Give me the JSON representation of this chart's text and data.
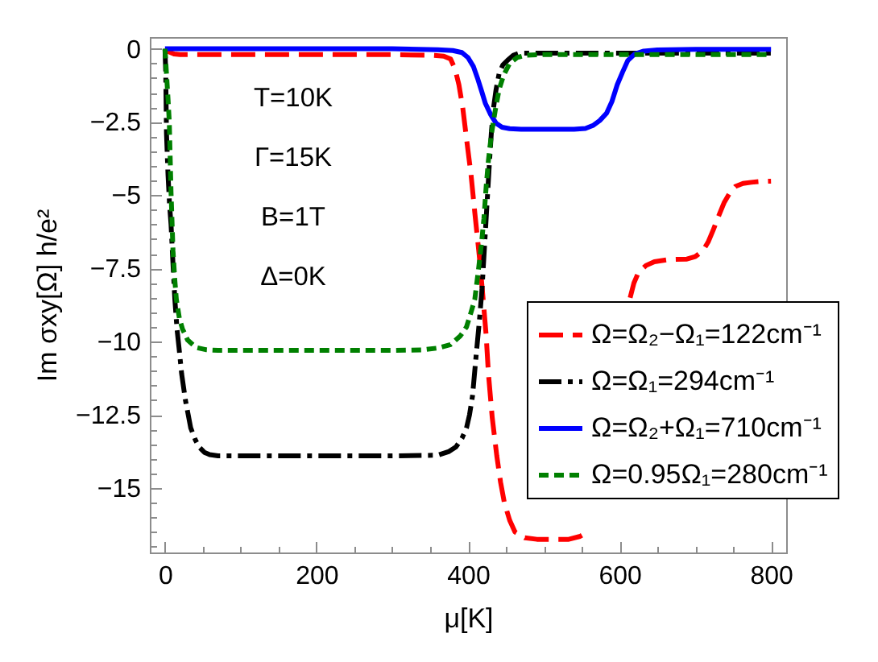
{
  "chart_data": {
    "type": "line",
    "xlabel": "μ[K]",
    "ylabel": "Im σxy[Ω] h/e²",
    "annotations": [
      "T=10K",
      "Γ=15K",
      "B=1T",
      "Δ=0K"
    ],
    "xlim": [
      -20,
      820
    ],
    "ylim": [
      -17.2,
      0.4
    ],
    "xticks": [
      0,
      {
        "value": 50,
        "label": null
      },
      {
        "value": 100,
        "label": null
      },
      {
        "value": 150,
        "label": null
      },
      200,
      {
        "value": 250,
        "label": null
      },
      {
        "value": 300,
        "label": null
      },
      {
        "value": 350,
        "label": null
      },
      400,
      {
        "value": 450,
        "label": null
      },
      {
        "value": 500,
        "label": null
      },
      {
        "value": 550,
        "label": null
      },
      600,
      {
        "value": 650,
        "label": null
      },
      {
        "value": 700,
        "label": null
      },
      {
        "value": 750,
        "label": null
      },
      800
    ],
    "yticks": [
      0,
      {
        "value": -0.5,
        "label": null
      },
      {
        "value": -1,
        "label": null
      },
      {
        "value": -1.5,
        "label": null
      },
      {
        "value": -2,
        "label": null
      },
      -2.5,
      {
        "value": -3,
        "label": null
      },
      {
        "value": -3.5,
        "label": null
      },
      {
        "value": -4,
        "label": null
      },
      {
        "value": -4.5,
        "label": null
      },
      -5,
      {
        "value": -5.5,
        "label": null
      },
      {
        "value": -6,
        "label": null
      },
      {
        "value": -6.5,
        "label": null
      },
      {
        "value": -7,
        "label": null
      },
      -7.5,
      {
        "value": -8,
        "label": null
      },
      {
        "value": -8.5,
        "label": null
      },
      {
        "value": -9,
        "label": null
      },
      {
        "value": -9.5,
        "label": null
      },
      -10,
      {
        "value": -10.5,
        "label": null
      },
      {
        "value": -11,
        "label": null
      },
      {
        "value": -11.5,
        "label": null
      },
      {
        "value": -12,
        "label": null
      },
      -12.5,
      {
        "value": -13,
        "label": null
      },
      {
        "value": -13.5,
        "label": null
      },
      {
        "value": -14,
        "label": null
      },
      {
        "value": -14.5,
        "label": null
      },
      -15,
      {
        "value": -15.5,
        "label": null
      },
      {
        "value": -16,
        "label": null
      },
      {
        "value": -16.5,
        "label": null
      },
      {
        "value": -17,
        "label": null
      }
    ],
    "legend": "bottom right",
    "series": [
      {
        "name": "Ω=Ω₂−Ω₁=122cm⁻¹",
        "color": "#ff0000",
        "line_style": "dashed",
        "x": [
          0,
          5,
          12,
          20,
          100,
          200,
          300,
          350,
          368,
          377,
          383,
          388,
          393,
          398,
          404,
          409,
          415,
          420,
          424,
          427,
          432,
          438,
          443,
          448,
          455,
          462,
          475,
          491,
          510,
          533,
          548,
          558,
          585,
          614,
          619,
          625,
          635,
          646,
          665,
          689,
          700,
          710,
          717,
          724,
          731,
          738,
          745,
          753,
          763,
          774,
          787,
          800
        ],
        "values": [
          0,
          -0.1,
          -0.18,
          -0.2,
          -0.2,
          -0.2,
          -0.2,
          -0.22,
          -0.25,
          -0.35,
          -0.7,
          -1.23,
          -2.0,
          -3.06,
          -4.3,
          -5.6,
          -7.1,
          -8.55,
          -9.8,
          -11.1,
          -12.6,
          -13.9,
          -14.8,
          -15.5,
          -16.1,
          -16.5,
          -16.7,
          -16.75,
          -16.75,
          -16.75,
          -16.65,
          -16.5,
          null,
          -8.5,
          -8.0,
          -7.64,
          -7.4,
          -7.27,
          -7.2,
          -7.18,
          -7.1,
          -6.9,
          -6.6,
          -6.17,
          -5.7,
          -5.26,
          -4.95,
          -4.7,
          -4.6,
          -4.56,
          -4.53,
          -4.52
        ]
      },
      {
        "name": "Ω=Ω₁=294cm⁻¹",
        "color": "#000000",
        "line_style": "dashdot",
        "x": [
          0,
          1,
          2,
          4,
          6,
          8,
          10.5,
          13,
          16,
          18.5,
          22,
          27,
          34,
          40,
          45,
          52,
          59,
          70,
          100,
          200,
          300,
          360,
          375,
          384,
          392,
          398,
          402,
          406,
          411,
          415,
          418.5,
          421,
          423.5,
          426,
          428.5,
          431,
          434,
          437,
          441,
          446,
          452,
          460,
          468,
          480,
          500,
          600,
          700,
          800
        ],
        "values": [
          0,
          -0.8,
          -2.9,
          -4.3,
          -5.3,
          -6.0,
          -7.3,
          -8.55,
          -9.6,
          -10.2,
          -11.1,
          -12.0,
          -12.95,
          -13.35,
          -13.6,
          -13.78,
          -13.86,
          -13.9,
          -13.9,
          -13.9,
          -13.9,
          -13.88,
          -13.75,
          -13.6,
          -13.3,
          -12.95,
          -12.5,
          -11.85,
          -10.4,
          -9.3,
          -8.2,
          -7.1,
          -6.0,
          -4.9,
          -3.8,
          -2.8,
          -1.96,
          -1.4,
          -0.86,
          -0.55,
          -0.4,
          -0.22,
          -0.15,
          -0.15,
          -0.15,
          -0.15,
          -0.15,
          -0.15
        ]
      },
      {
        "name": "Ω=Ω₂+Ω₁=710cm⁻¹",
        "color": "#0000ff",
        "line_style": "solid",
        "x": [
          0,
          100,
          200,
          300,
          360,
          380,
          392,
          400,
          407,
          413,
          418,
          423,
          430,
          437,
          445,
          455,
          470,
          500,
          540,
          555,
          565,
          574,
          583,
          590,
          597,
          604,
          611,
          620,
          632,
          650,
          700,
          800
        ],
        "values": [
          0,
          0,
          0,
          0,
          -0.03,
          -0.06,
          -0.13,
          -0.3,
          -0.6,
          -1.04,
          -1.45,
          -1.87,
          -2.25,
          -2.54,
          -2.68,
          -2.73,
          -2.75,
          -2.75,
          -2.75,
          -2.72,
          -2.62,
          -2.45,
          -2.2,
          -1.8,
          -1.23,
          -0.8,
          -0.4,
          -0.18,
          -0.08,
          -0.04,
          -0.02,
          -0.02
        ]
      },
      {
        "name": "Ω=0.95Ω₁=280cm⁻¹",
        "color": "#008000",
        "line_style": "dotted",
        "x": [
          0,
          2,
          4,
          5.7,
          8,
          10.6,
          13,
          15,
          19,
          23,
          30,
          41,
          55,
          70,
          100,
          200,
          300,
          340,
          360,
          377,
          390,
          398,
          404,
          409,
          414,
          418,
          421,
          424,
          427,
          431,
          436,
          441,
          447,
          455,
          465,
          476,
          500,
          600,
          700,
          800
        ],
        "values": [
          0,
          -0.86,
          -1.7,
          -2.5,
          -4.9,
          -6.9,
          -7.9,
          -8.55,
          -9.2,
          -9.56,
          -9.95,
          -10.2,
          -10.28,
          -10.3,
          -10.3,
          -10.3,
          -10.3,
          -10.28,
          -10.22,
          -10.1,
          -9.8,
          -9.5,
          -9.0,
          -8.55,
          -7.5,
          -6.6,
          -5.8,
          -4.7,
          -3.8,
          -2.9,
          -2.1,
          -1.4,
          -0.9,
          -0.5,
          -0.3,
          -0.22,
          -0.2,
          -0.2,
          -0.2,
          -0.2
        ]
      }
    ]
  }
}
